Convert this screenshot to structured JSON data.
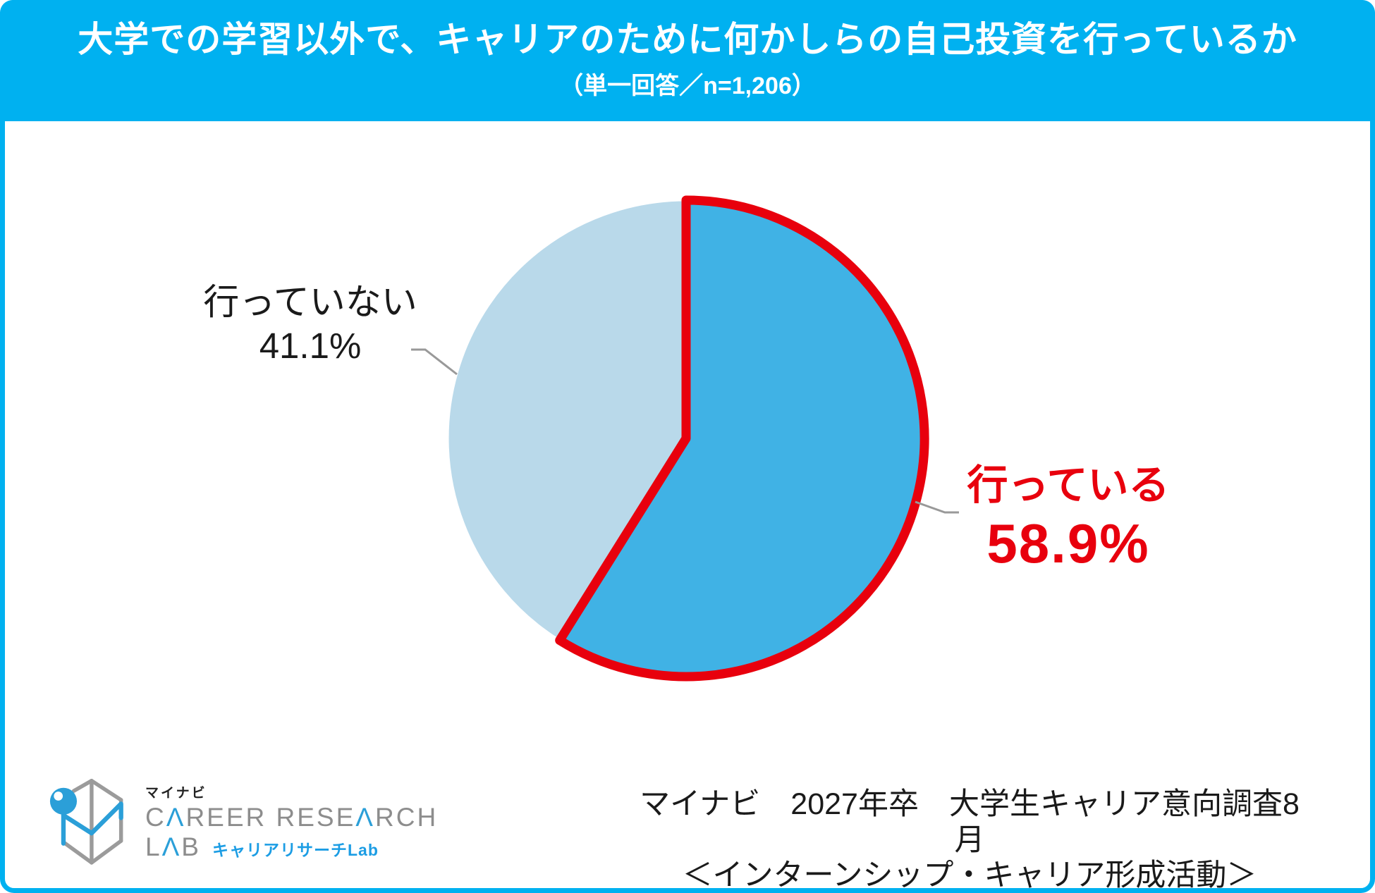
{
  "header": {
    "title": "大学での学習以外で、キャリアのために何かしらの自己投資を行っているか",
    "subtitle": "（単一回答／n=1,206）"
  },
  "chart_data": {
    "type": "pie",
    "title": "大学での学習以外で、キャリアのために何かしらの自己投資を行っているか",
    "sample_note": "単一回答／n=1,206",
    "start_angle_deg": 0,
    "direction": "clockwise",
    "legend_position": "outside-callouts",
    "slices": [
      {
        "label": "行っている",
        "value": 58.9,
        "display": "58.9%",
        "color": "#40b2e5",
        "highlight": true,
        "highlight_color": "#e8000d",
        "label_color": "#e8000d"
      },
      {
        "label": "行っていない",
        "value": 41.1,
        "display": "41.1%",
        "color": "#b9d9ea",
        "highlight": false,
        "label_color": "#1a1a1a"
      }
    ]
  },
  "footer": {
    "logo": {
      "brand": "マイナビ",
      "career": {
        "p1": "C",
        "a1": "Λ",
        "p2": "REER RESE",
        "a2": "Λ",
        "p3": "RCH"
      },
      "lab": {
        "l": "L",
        "a": "Λ",
        "b": "B"
      },
      "lab_sub": "キャリアリサーチLab"
    },
    "source_line1": "マイナビ　2027年卒　大学生キャリア意向調査8月",
    "source_line2": "＜インターンシップ・キャリア形成活動＞"
  },
  "colors": {
    "accent": "#00b1f0",
    "highlight_red": "#e8000d",
    "pie_dark": "#40b2e5",
    "pie_light": "#b9d9ea",
    "leader_gray": "#999999",
    "text_dark": "#1a1a1a",
    "logo_gray": "#8d8d8d",
    "logo_blue": "#2b9fd8",
    "logo_jp_blue": "#1c9de4"
  }
}
